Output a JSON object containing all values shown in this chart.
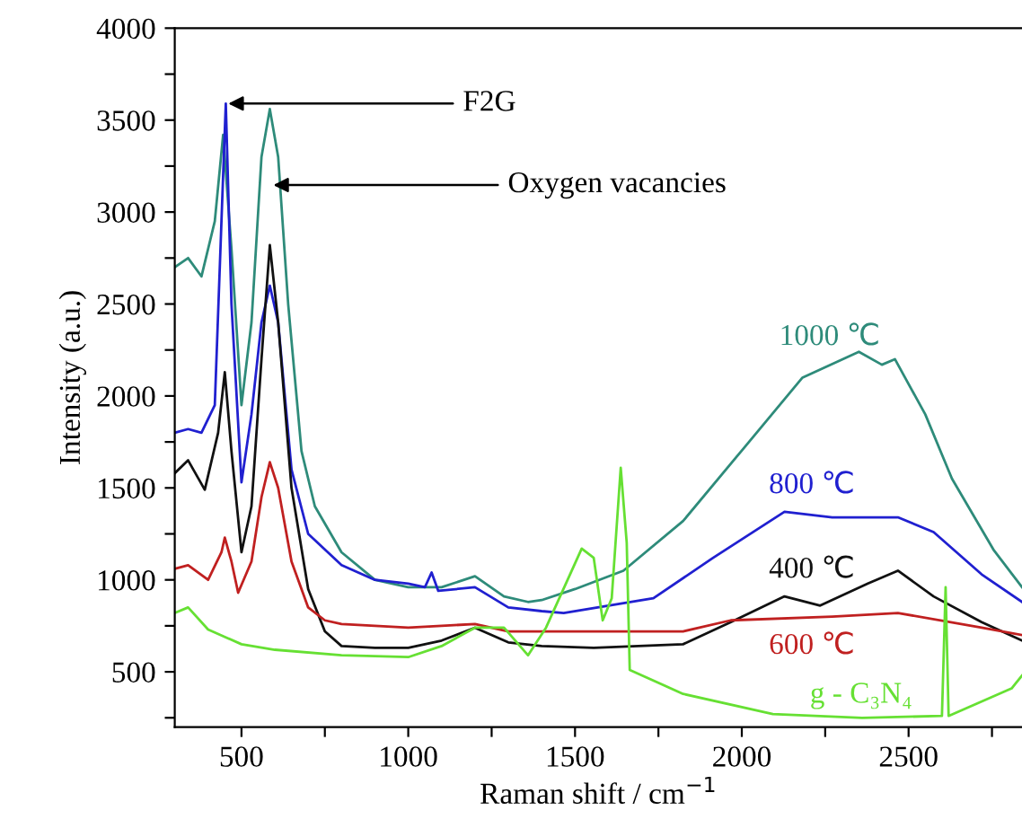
{
  "chart_data": {
    "type": "line",
    "xlabel": "Raman shift / cm$^{−1}$",
    "ylabel": "Intensity (a.u.)",
    "xlim": [
      300,
      2840
    ],
    "ylim": [
      200,
      4000
    ],
    "xticks": [
      500,
      {
        "value": 750,
        "label": null
      },
      1000,
      {
        "value": 1250,
        "label": null
      },
      1500,
      {
        "value": 1750,
        "label": null
      },
      2000,
      {
        "value": 2250,
        "label": null
      },
      2500,
      {
        "value": 2750,
        "label": null
      }
    ],
    "yticks": [
      {
        "value": 250,
        "label": null
      },
      500,
      {
        "value": 750,
        "label": null
      },
      1000,
      {
        "value": 1250,
        "label": null
      },
      1500,
      {
        "value": 1750,
        "label": null
      },
      2000,
      {
        "value": 2250,
        "label": null
      },
      2500,
      {
        "value": 2750,
        "label": null
      },
      3000,
      {
        "value": 3250,
        "label": null
      },
      3500,
      {
        "value": 3750,
        "label": null
      },
      4000
    ],
    "grid": false,
    "legend": false,
    "series": [
      {
        "name": "1000 ℃",
        "color": "#2e8b7a",
        "x": [
          300,
          340,
          380,
          420,
          445,
          470,
          500,
          530,
          560,
          585,
          610,
          640,
          680,
          720,
          800,
          900,
          1000,
          1100,
          1200,
          1287,
          1359,
          1400,
          1500,
          1645,
          1824,
          2003,
          2182,
          2351,
          2420,
          2459,
          2550,
          2630,
          2756,
          2840
        ],
        "values": [
          2700,
          2750,
          2650,
          2950,
          3420,
          2800,
          1950,
          2400,
          3300,
          3560,
          3300,
          2500,
          1700,
          1400,
          1150,
          1000,
          960,
          960,
          1020,
          910,
          880,
          890,
          950,
          1050,
          1320,
          1710,
          2100,
          2240,
          2170,
          2200,
          1900,
          1550,
          1160,
          960
        ]
      },
      {
        "name": "800 ℃",
        "color": "#2020d0",
        "x": [
          300,
          340,
          380,
          420,
          445,
          453,
          470,
          500,
          530,
          560,
          585,
          610,
          650,
          700,
          800,
          900,
          1000,
          1050,
          1070,
          1090,
          1200,
          1300,
          1400,
          1466,
          1735,
          1914,
          2128,
          2271,
          2468,
          2575,
          2719,
          2840
        ],
        "values": [
          1800,
          1820,
          1800,
          1950,
          3200,
          3590,
          2500,
          1530,
          1900,
          2400,
          2600,
          2400,
          1600,
          1250,
          1080,
          1000,
          980,
          960,
          1040,
          940,
          960,
          850,
          830,
          820,
          900,
          1120,
          1370,
          1340,
          1340,
          1260,
          1030,
          880
        ]
      },
      {
        "name": "400 ℃",
        "color": "#111111",
        "x": [
          300,
          340,
          390,
          430,
          450,
          470,
          500,
          530,
          560,
          585,
          610,
          650,
          700,
          750,
          800,
          900,
          1000,
          1100,
          1200,
          1300,
          1400,
          1556,
          1824,
          1967,
          2128,
          2235,
          2378,
          2468,
          2575,
          2719,
          2840
        ],
        "values": [
          1580,
          1650,
          1490,
          1800,
          2130,
          1700,
          1150,
          1400,
          2200,
          2820,
          2400,
          1500,
          950,
          720,
          640,
          630,
          630,
          670,
          740,
          660,
          640,
          630,
          650,
          770,
          910,
          860,
          980,
          1050,
          910,
          770,
          670
        ]
      },
      {
        "name": "600 ℃",
        "color": "#c02020",
        "x": [
          300,
          340,
          400,
          440,
          450,
          470,
          490,
          530,
          560,
          585,
          610,
          650,
          700,
          750,
          800,
          900,
          1000,
          1100,
          1200,
          1300,
          1824,
          1967,
          2271,
          2468,
          2719,
          2840
        ],
        "values": [
          1060,
          1080,
          1000,
          1150,
          1230,
          1100,
          930,
          1100,
          1450,
          1640,
          1500,
          1100,
          850,
          780,
          760,
          750,
          740,
          750,
          760,
          720,
          720,
          780,
          800,
          820,
          740,
          700
        ]
      },
      {
        "name": "g - C₃N₄",
        "color": "#66e033",
        "x": [
          300,
          340,
          400,
          500,
          600,
          800,
          1000,
          1100,
          1200,
          1287,
          1359,
          1413,
          1520,
          1556,
          1583,
          1610,
          1637,
          1655,
          1664,
          1824,
          2093,
          2361,
          2600,
          2611,
          2620,
          2809,
          2840
        ],
        "values": [
          820,
          850,
          730,
          650,
          620,
          590,
          580,
          640,
          740,
          740,
          590,
          740,
          1170,
          1120,
          780,
          900,
          1610,
          1200,
          510,
          380,
          270,
          250,
          260,
          960,
          260,
          410,
          480
        ]
      }
    ],
    "annotations": [
      {
        "text": "F2G",
        "x": 453,
        "y": 3590
      },
      {
        "text": "Oxygen vacancies",
        "x": 588,
        "y": 3147
      }
    ]
  }
}
